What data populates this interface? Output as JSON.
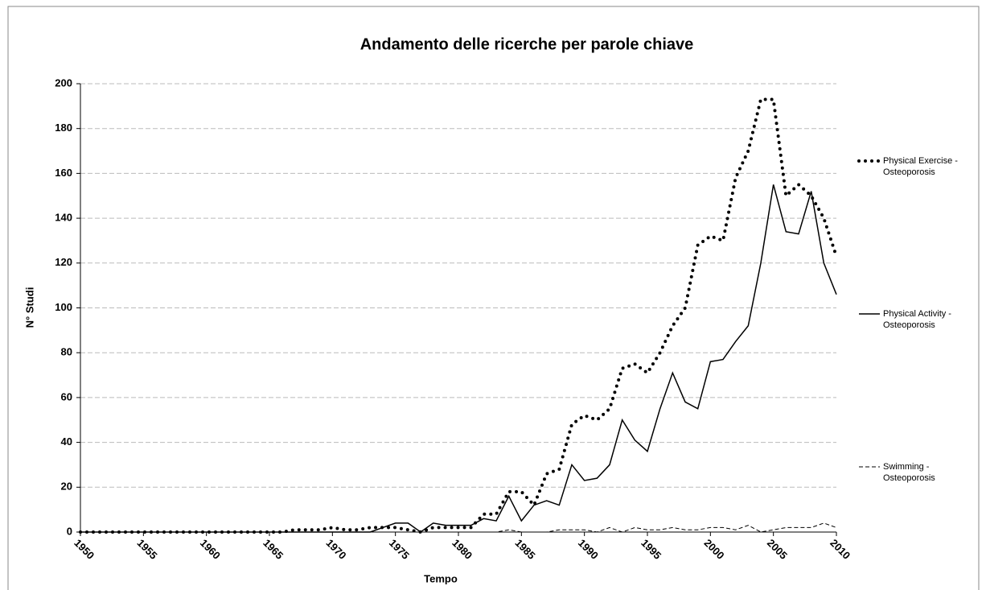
{
  "chart_data": {
    "type": "line",
    "title": "Andamento delle ricerche per parole chiave",
    "x_label": "Tempo",
    "y_label": "N° Studi",
    "x": [
      1950,
      1951,
      1952,
      1953,
      1954,
      1955,
      1956,
      1957,
      1958,
      1959,
      1960,
      1961,
      1962,
      1963,
      1964,
      1965,
      1966,
      1967,
      1968,
      1969,
      1970,
      1971,
      1972,
      1973,
      1974,
      1975,
      1976,
      1977,
      1978,
      1979,
      1980,
      1981,
      1982,
      1983,
      1984,
      1985,
      1986,
      1987,
      1988,
      1989,
      1990,
      1991,
      1992,
      1993,
      1994,
      1995,
      1996,
      1997,
      1998,
      1999,
      2000,
      2001,
      2002,
      2003,
      2004,
      2005,
      2006,
      2007,
      2008,
      2009,
      2010
    ],
    "series": [
      {
        "name": "Physical Exercise - Osteoporosis",
        "color": "#000000",
        "dash": "dotted",
        "values": [
          0,
          0,
          0,
          0,
          0,
          0,
          0,
          0,
          0,
          0,
          0,
          0,
          0,
          0,
          0,
          0,
          0,
          1,
          1,
          1,
          2,
          1,
          1,
          2,
          2,
          2,
          1,
          0,
          2,
          2,
          2,
          2,
          8,
          8,
          18,
          18,
          12,
          26,
          28,
          48,
          52,
          50,
          55,
          73,
          75,
          71,
          80,
          92,
          100,
          128,
          132,
          130,
          158,
          170,
          193,
          193,
          150,
          155,
          150,
          140,
          123
        ]
      },
      {
        "name": "Physical Activity - Osteoporosis",
        "color": "#000000",
        "dash": "solid",
        "values": [
          0,
          0,
          0,
          0,
          0,
          0,
          0,
          0,
          0,
          0,
          0,
          0,
          0,
          0,
          0,
          0,
          0,
          0,
          0,
          0,
          0,
          0,
          0,
          0,
          2,
          4,
          4,
          0,
          4,
          3,
          3,
          3,
          6,
          5,
          16,
          5,
          12,
          14,
          12,
          30,
          23,
          24,
          30,
          50,
          41,
          36,
          55,
          71,
          58,
          55,
          76,
          77,
          85,
          92,
          120,
          155,
          134,
          133,
          152,
          120,
          106
        ]
      },
      {
        "name": "Swimming - Osteoporosis",
        "color": "#000000",
        "dash": "dashed",
        "values": [
          0,
          0,
          0,
          0,
          0,
          0,
          0,
          0,
          0,
          0,
          0,
          0,
          0,
          0,
          0,
          0,
          0,
          0,
          0,
          0,
          0,
          0,
          0,
          0,
          0,
          0,
          0,
          0,
          0,
          0,
          0,
          0,
          0,
          0,
          1,
          0,
          0,
          0,
          1,
          1,
          1,
          0,
          2,
          0,
          2,
          1,
          1,
          2,
          1,
          1,
          2,
          2,
          1,
          3,
          0,
          1,
          2,
          2,
          2,
          4,
          2
        ]
      }
    ],
    "xlim": [
      1950,
      2010
    ],
    "xticks": [
      1950,
      1955,
      1960,
      1965,
      1970,
      1975,
      1980,
      1985,
      1990,
      1995,
      2000,
      2005,
      2010
    ],
    "ylim": [
      0,
      200
    ],
    "yticks": [
      0,
      20,
      40,
      60,
      80,
      100,
      120,
      140,
      160,
      180,
      200
    ],
    "grid": true,
    "legend": "right"
  }
}
